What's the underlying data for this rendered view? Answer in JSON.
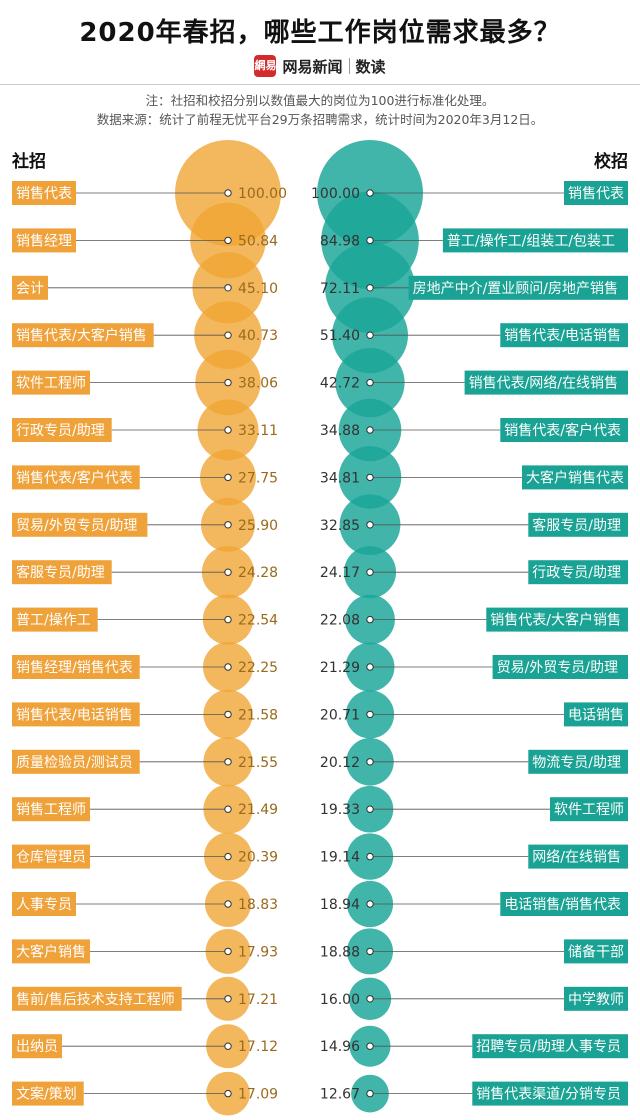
{
  "title": "2020年春招，哪些工作岗位需求最多？",
  "source_brand": "网易新闻",
  "source_column": "数读",
  "logo_text": "網易",
  "note_line1": "注：社招和校招分别以数值最大的岗位为100进行标准化处理。",
  "note_line2": "数据来源：统计了前程无忧平台29万条招聘需求，统计时间为2020年3月12日。",
  "colors": {
    "left_bubble": "#f0a535",
    "left_label_bg": "#efa13a",
    "left_value_text": "#9a6a1c",
    "right_bubble": "#19a597",
    "right_label_bg": "#1aa394",
    "right_value_text": "#333333"
  },
  "chart_data": [
    {
      "type": "bubble",
      "title": "社招",
      "categories": [
        "销售代表",
        "销售经理",
        "会计",
        "销售代表/大客户销售",
        "软件工程师",
        "行政专员/助理",
        "销售代表/客户代表",
        "贸易/外贸专员/助理",
        "客服专员/助理",
        "普工/操作工",
        "销售经理/销售代表",
        "销售代表/电话销售",
        "质量检验员/测试员",
        "销售工程师",
        "仓库管理员",
        "人事专员",
        "大客户销售",
        "售前/售后技术支持工程师",
        "出纳员",
        "文案/策划"
      ],
      "values": [
        100.0,
        50.84,
        45.1,
        40.73,
        38.06,
        33.11,
        27.75,
        25.9,
        24.28,
        22.54,
        22.25,
        21.58,
        21.55,
        21.49,
        20.39,
        18.83,
        17.93,
        17.21,
        17.12,
        17.09
      ],
      "value_labels": [
        "100.00",
        "50.84",
        "45.10",
        "40.73",
        "38.06",
        "33.11",
        "27.75",
        "25.90",
        "24.28",
        "22.54",
        "22.25",
        "21.58",
        "21.55",
        "21.49",
        "20.39",
        "18.83",
        "17.93",
        "17.21",
        "17.12",
        "17.09"
      ]
    },
    {
      "type": "bubble",
      "title": "校招",
      "categories": [
        "销售代表",
        "普工/操作工/组装工/包装工",
        "房地产中介/置业顾问/房地产销售",
        "销售代表/电话销售",
        "销售代表/网络/在线销售",
        "销售代表/客户代表",
        "大客户销售代表",
        "客服专员/助理",
        "行政专员/助理",
        "销售代表/大客户销售",
        "贸易/外贸专员/助理",
        "电话销售",
        "物流专员/助理",
        "软件工程师",
        "网络/在线销售",
        "电话销售/销售代表",
        "储备干部",
        "中学教师",
        "招聘专员/助理人事专员",
        "销售代表渠道/分销专员"
      ],
      "values": [
        100.0,
        84.98,
        72.11,
        51.4,
        42.72,
        34.88,
        34.81,
        32.85,
        24.17,
        22.08,
        21.29,
        20.71,
        20.12,
        19.33,
        19.14,
        18.94,
        18.88,
        16.0,
        14.96,
        12.67
      ],
      "value_labels": [
        "100.00",
        "84.98",
        "72.11",
        "51.40",
        "42.72",
        "34.88",
        "34.81",
        "32.85",
        "24.17",
        "22.08",
        "21.29",
        "20.71",
        "20.12",
        "19.33",
        "19.14",
        "18.94",
        "18.88",
        "16.00",
        "14.96",
        "12.67"
      ]
    }
  ]
}
